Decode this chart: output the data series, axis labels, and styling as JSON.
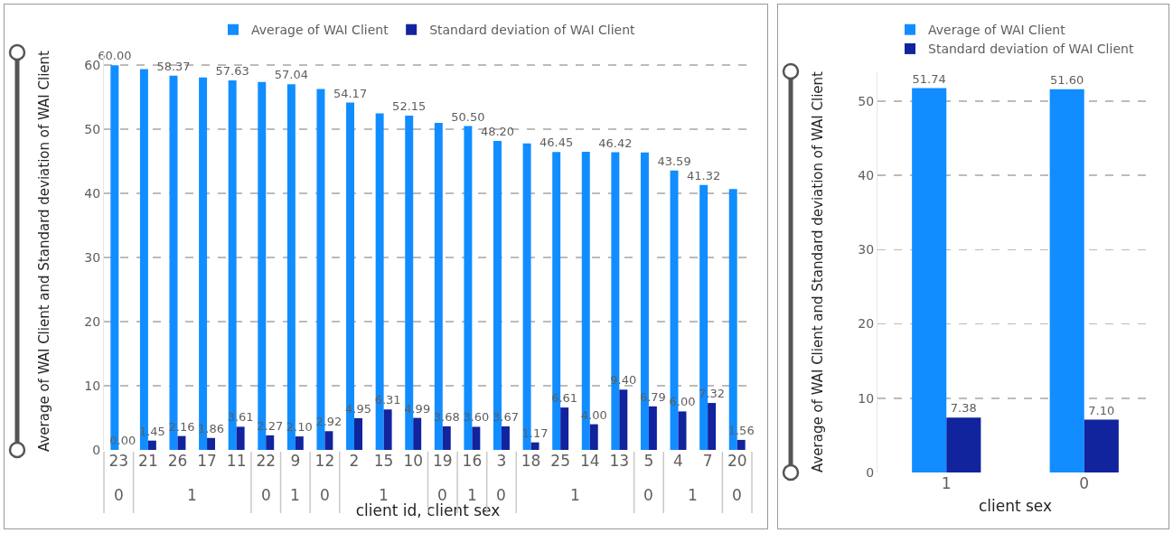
{
  "chart_data": [
    {
      "type": "bar",
      "xlabel": "client id, client sex",
      "ylabel": "Average of WAI Client and Standard deviation of WAI Client",
      "categories": [
        "23",
        "21",
        "26",
        "17",
        "11",
        "22",
        "9",
        "12",
        "2",
        "15",
        "10",
        "19",
        "16",
        "3",
        "18",
        "25",
        "14",
        "13",
        "5",
        "4",
        "7",
        "20"
      ],
      "series": [
        {
          "name": "Average of WAI Client",
          "color": "#118dff",
          "values": [
            60.0,
            59.4,
            58.37,
            58.1,
            57.63,
            57.4,
            57.04,
            56.3,
            54.17,
            52.5,
            52.15,
            51.0,
            50.5,
            48.2,
            47.8,
            46.45,
            46.5,
            46.42,
            46.4,
            43.59,
            41.32,
            40.7
          ],
          "value_labels": [
            "60.00",
            null,
            "58.37",
            null,
            "57.63",
            null,
            "57.04",
            null,
            "54.17",
            null,
            "52.15",
            null,
            "50.50",
            "48.20",
            null,
            "46.45",
            null,
            "46.42",
            null,
            "43.59",
            "41.32",
            null
          ]
        },
        {
          "name": "Standard deviation of WAI Client",
          "color": "#12239e",
          "values": [
            0.0,
            1.45,
            2.16,
            1.86,
            3.61,
            2.27,
            2.1,
            2.92,
            4.95,
            6.31,
            4.99,
            3.68,
            3.6,
            3.67,
            1.17,
            6.61,
            4.0,
            9.4,
            6.79,
            6.0,
            7.32,
            1.56
          ],
          "value_labels": [
            "0.00",
            "1.45",
            "2.16",
            "1.86",
            "3.61",
            "2.27",
            "2.10",
            "2.92",
            "4.95",
            "6.31",
            "4.99",
            "3.68",
            "3.60",
            "3.67",
            "1.17",
            "6.61",
            "4.00",
            "9.40",
            "6.79",
            "6.00",
            "7.32",
            "1.56"
          ]
        }
      ],
      "annotations": [
        "0",
        "1",
        "0",
        "1",
        "0",
        "1",
        "0",
        "1",
        "0",
        "1",
        "0",
        "1",
        "0"
      ],
      "ylim": [
        0,
        62
      ],
      "yticks": [
        0,
        10,
        20,
        30,
        40,
        50,
        60
      ],
      "grid": "y",
      "legend": "top"
    },
    {
      "type": "bar",
      "xlabel": "client sex",
      "ylabel": "Average of WAI Client and Standard deviation of WAI Client",
      "categories": [
        "1",
        "0"
      ],
      "series": [
        {
          "name": "Average of WAI Client",
          "color": "#118dff",
          "values": [
            51.74,
            51.6
          ],
          "value_labels": [
            "51.74",
            "51.60"
          ]
        },
        {
          "name": "Standard deviation of WAI Client",
          "color": "#12239e",
          "values": [
            7.38,
            7.1
          ],
          "value_labels": [
            "7.38",
            "7.10"
          ]
        }
      ],
      "ylim": [
        0,
        54
      ],
      "yticks": [
        0,
        10,
        20,
        30,
        40,
        50
      ],
      "grid": "y",
      "legend": "top"
    }
  ]
}
